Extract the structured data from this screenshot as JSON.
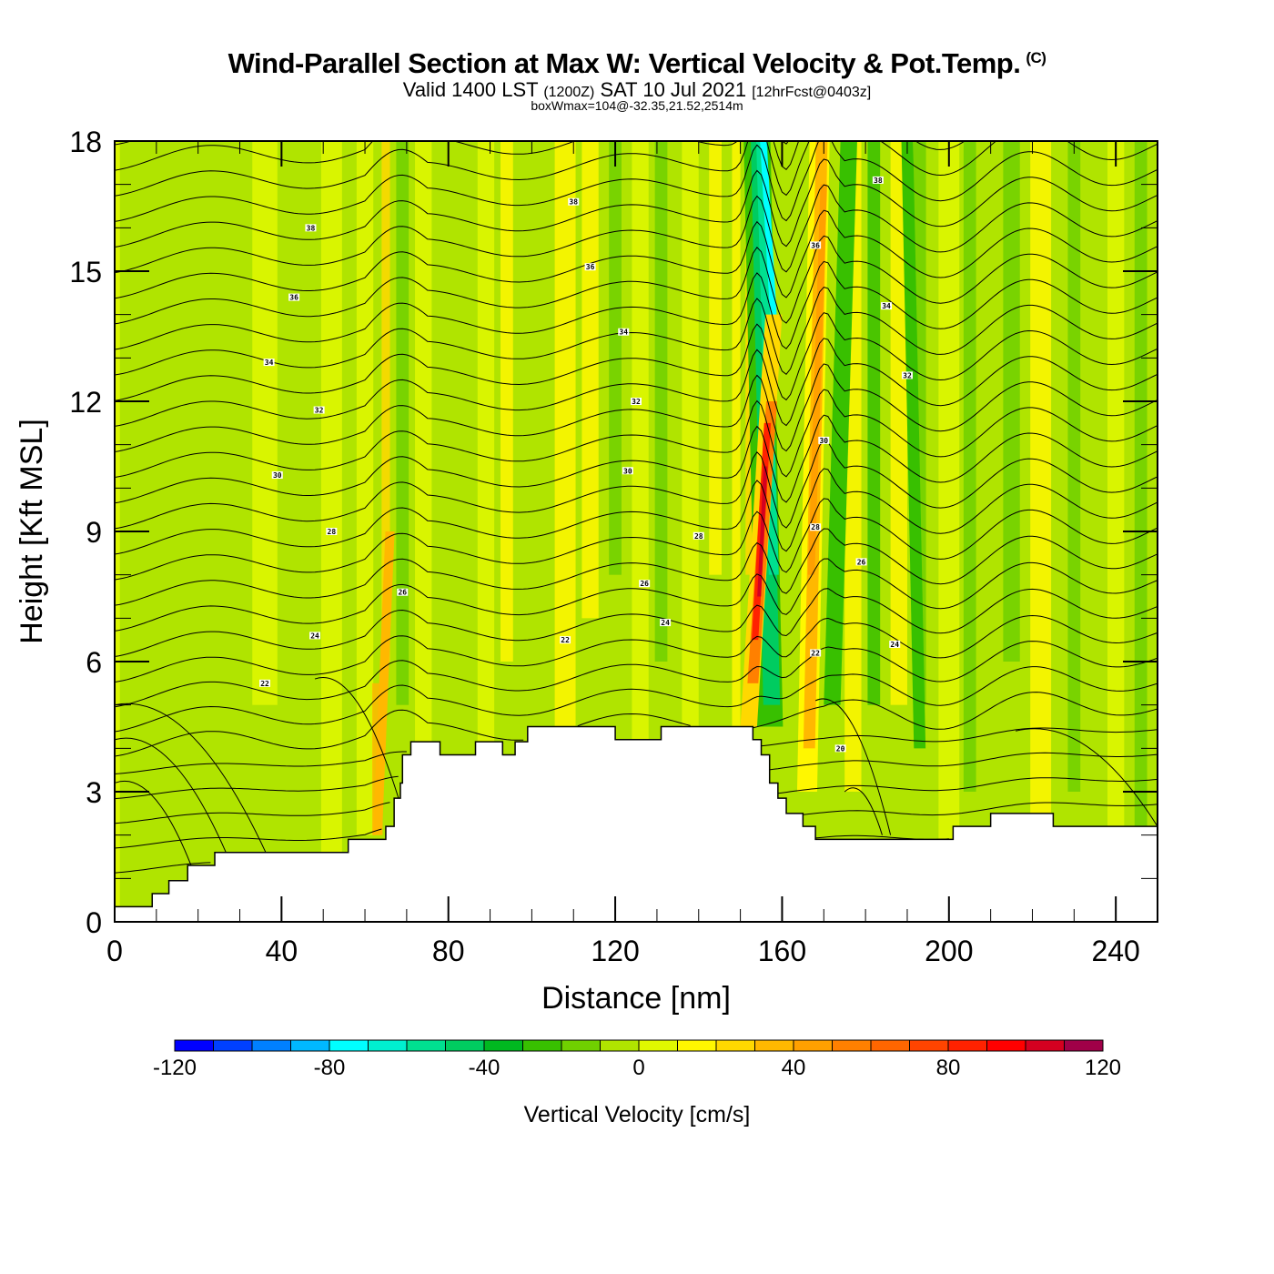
{
  "header": {
    "title": "Wind-Parallel Section at Max W: Vertical Velocity & Pot.Temp.",
    "copyright": "(C)",
    "valid_prefix": "Valid 1400 LST",
    "valid_utc": "(1200Z)",
    "valid_date": "SAT 10 Jul 2021",
    "forecast": "[12hrFcst@0403z]",
    "boxwmax": "boxWmax=104@-32.35,21.52,2514m"
  },
  "chart_data": {
    "type": "heatmap",
    "title": "Wind-Parallel Section at Max W: Vertical Velocity & Pot.Temp.",
    "xlabel": "Distance [nm]",
    "ylabel": "Height [Kft MSL]",
    "xlim": [
      0,
      250
    ],
    "ylim": [
      0,
      18
    ],
    "xticks": [
      0,
      40,
      80,
      120,
      160,
      200,
      240
    ],
    "xtick_labels": [
      "0",
      "40",
      "80",
      "120",
      "160",
      "200",
      "240"
    ],
    "yticks": [
      0,
      3,
      6,
      9,
      12,
      15,
      18
    ],
    "ytick_labels": [
      "0",
      "3",
      "6",
      "9",
      "12",
      "15",
      "18"
    ],
    "colorbar": {
      "title": "Vertical Velocity [cm/s]",
      "min": -120,
      "max": 120,
      "step": 10,
      "tick_values": [
        -120,
        -80,
        -40,
        0,
        40,
        80,
        120
      ],
      "tick_labels": [
        "-120",
        "-80",
        "-40",
        "0",
        "40",
        "80",
        "120"
      ],
      "colors": [
        "#0000ff",
        "#0040ff",
        "#0080ff",
        "#00b8ff",
        "#00ffff",
        "#00f0d0",
        "#00e090",
        "#00cc60",
        "#00b820",
        "#38c000",
        "#70d000",
        "#b0e400",
        "#e0f800",
        "#fff700",
        "#ffd800",
        "#ffb800",
        "#ffa000",
        "#ff8000",
        "#ff6600",
        "#ff4400",
        "#ff2200",
        "#ff0000",
        "#d40020",
        "#a00048"
      ]
    },
    "max_w_cm_s": 104,
    "theta_contour_interval": 1,
    "theta_labels": [
      {
        "value": "38",
        "x": 47,
        "y": 16.0
      },
      {
        "value": "36",
        "x": 43,
        "y": 14.4
      },
      {
        "value": "34",
        "x": 37,
        "y": 12.9
      },
      {
        "value": "32",
        "x": 49,
        "y": 11.8
      },
      {
        "value": "30",
        "x": 39,
        "y": 10.3
      },
      {
        "value": "28",
        "x": 52,
        "y": 9.0
      },
      {
        "value": "26",
        "x": 69,
        "y": 7.6
      },
      {
        "value": "24",
        "x": 48,
        "y": 6.6
      },
      {
        "value": "22",
        "x": 36,
        "y": 5.5
      },
      {
        "value": "38",
        "x": 110,
        "y": 16.6
      },
      {
        "value": "36",
        "x": 114,
        "y": 15.1
      },
      {
        "value": "34",
        "x": 122,
        "y": 13.6
      },
      {
        "value": "32",
        "x": 125,
        "y": 12.0
      },
      {
        "value": "30",
        "x": 123,
        "y": 10.4
      },
      {
        "value": "28",
        "x": 140,
        "y": 8.9
      },
      {
        "value": "26",
        "x": 127,
        "y": 7.8
      },
      {
        "value": "24",
        "x": 132,
        "y": 6.9
      },
      {
        "value": "22",
        "x": 108,
        "y": 6.5
      },
      {
        "value": "38",
        "x": 183,
        "y": 17.1
      },
      {
        "value": "36",
        "x": 168,
        "y": 15.6
      },
      {
        "value": "34",
        "x": 185,
        "y": 14.2
      },
      {
        "value": "32",
        "x": 190,
        "y": 12.6
      },
      {
        "value": "30",
        "x": 170,
        "y": 11.1
      },
      {
        "value": "28",
        "x": 168,
        "y": 9.1
      },
      {
        "value": "26",
        "x": 179,
        "y": 8.3
      },
      {
        "value": "24",
        "x": 187,
        "y": 6.4
      },
      {
        "value": "22",
        "x": 168,
        "y": 6.2
      },
      {
        "value": "20",
        "x": 174,
        "y": 4.0
      }
    ],
    "terrain_kft": [
      {
        "x0": 0,
        "x1": 9,
        "h": 0.35
      },
      {
        "x0": 9,
        "x1": 13,
        "h": 0.65
      },
      {
        "x0": 13,
        "x1": 17.5,
        "h": 0.95
      },
      {
        "x0": 17.5,
        "x1": 24,
        "h": 1.3
      },
      {
        "x0": 24,
        "x1": 28.5,
        "h": 1.6
      },
      {
        "x0": 28.5,
        "x1": 56,
        "h": 1.6
      },
      {
        "x0": 56,
        "x1": 65,
        "h": 1.9
      },
      {
        "x0": 65,
        "x1": 67,
        "h": 2.2
      },
      {
        "x0": 67,
        "x1": 68.5,
        "h": 2.85
      },
      {
        "x0": 68.5,
        "x1": 69,
        "h": 3.2
      },
      {
        "x0": 69,
        "x1": 71,
        "h": 3.85
      },
      {
        "x0": 71,
        "x1": 78,
        "h": 4.15
      },
      {
        "x0": 78,
        "x1": 86.5,
        "h": 3.85
      },
      {
        "x0": 86.5,
        "x1": 93,
        "h": 4.15
      },
      {
        "x0": 93,
        "x1": 96,
        "h": 3.85
      },
      {
        "x0": 96,
        "x1": 99,
        "h": 4.15
      },
      {
        "x0": 99,
        "x1": 120,
        "h": 4.5
      },
      {
        "x0": 120,
        "x1": 131,
        "h": 4.2
      },
      {
        "x0": 131,
        "x1": 153,
        "h": 4.5
      },
      {
        "x0": 153,
        "x1": 155,
        "h": 4.2
      },
      {
        "x0": 155,
        "x1": 157,
        "h": 3.85
      },
      {
        "x0": 157,
        "x1": 159,
        "h": 3.2
      },
      {
        "x0": 159,
        "x1": 161,
        "h": 2.85
      },
      {
        "x0": 161,
        "x1": 165,
        "h": 2.5
      },
      {
        "x0": 165,
        "x1": 168,
        "h": 2.2
      },
      {
        "x0": 168,
        "x1": 175,
        "h": 1.9
      },
      {
        "x0": 175,
        "x1": 201,
        "h": 1.9
      },
      {
        "x0": 201,
        "x1": 210,
        "h": 2.2
      },
      {
        "x0": 210,
        "x1": 225,
        "h": 2.5
      },
      {
        "x0": 225,
        "x1": 250,
        "h": 2.2
      }
    ],
    "w_features": [
      {
        "name": "main-updraft",
        "x_bottom": 153,
        "x_top": 158,
        "y_bottom": 6.5,
        "y_top": 11.5,
        "w": 104
      },
      {
        "name": "main-downdraft",
        "x_bottom": 158,
        "x_top": 155,
        "y_bottom": 4.5,
        "y_top": 18,
        "w": -75
      },
      {
        "name": "lee-updraft",
        "x_bottom": 166,
        "x_top": 170,
        "y_bottom": 3,
        "y_top": 18,
        "w": 40
      },
      {
        "name": "west-updraft",
        "x_bottom": 63,
        "x_top": 66,
        "y_bottom": 2,
        "y_top": 18,
        "w": 30
      }
    ]
  }
}
